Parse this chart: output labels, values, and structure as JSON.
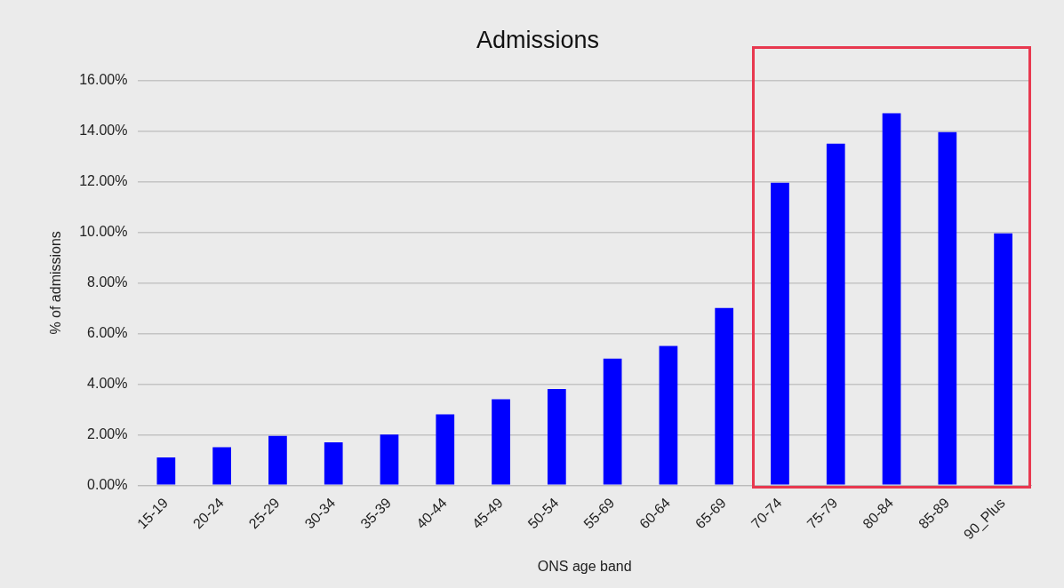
{
  "chart_data": {
    "type": "bar",
    "title": "Admissions",
    "xlabel": "ONS age band",
    "ylabel": "% of admissions",
    "categories": [
      "15-19",
      "20-24",
      "25-29",
      "30-34",
      "35-39",
      "40-44",
      "45-49",
      "50-54",
      "55-69",
      "60-64",
      "65-69",
      "70-74",
      "75-79",
      "80-84",
      "85-89",
      "90_Plus"
    ],
    "values": [
      1.1,
      1.5,
      1.95,
      1.7,
      2.0,
      2.8,
      3.4,
      3.8,
      5.0,
      5.5,
      7.0,
      11.95,
      13.5,
      14.7,
      13.95,
      9.95
    ],
    "color": "#0000ff",
    "ylim": [
      0,
      16
    ],
    "yticks": [
      {
        "value": 0,
        "label": "0.00%"
      },
      {
        "value": 2,
        "label": "2.00%"
      },
      {
        "value": 4,
        "label": "4.00%"
      },
      {
        "value": 6,
        "label": "6.00%"
      },
      {
        "value": 8,
        "label": "8.00%"
      },
      {
        "value": 10,
        "label": "10.00%"
      },
      {
        "value": 12,
        "label": "12.00%"
      },
      {
        "value": 14,
        "label": "14.00%"
      },
      {
        "value": 16,
        "label": "16.00%"
      }
    ],
    "grid": "y",
    "legend": false
  }
}
